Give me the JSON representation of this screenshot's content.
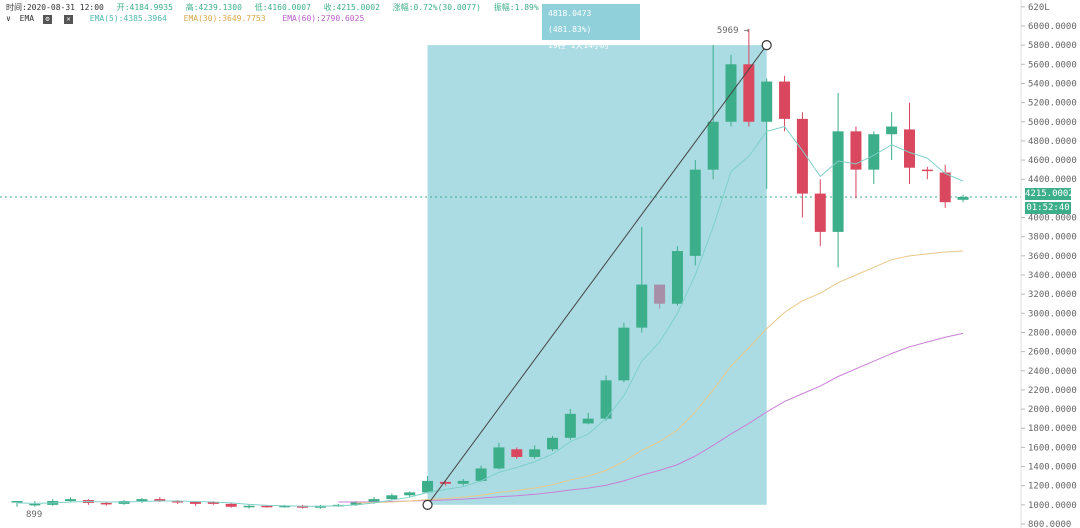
{
  "header": {
    "time": "时间:2020-08-31 12:00",
    "open": "开:4184.9935",
    "high": "高:4239.1300",
    "low": "低:4160.0007",
    "close": "收:4215.0002",
    "change": "涨幅:0.72%(30.0077)",
    "amplitude": "振幅:1.89%"
  },
  "indicator": {
    "toggle": "∨",
    "name": "EMA",
    "ema5": "EMA(5):4385.3964",
    "ema30": "EMA(30):3649.7753",
    "ema60": "EMA(60):2790.6025"
  },
  "tooltip": {
    "line1": "4818.0473 (481.83%)",
    "line2": "19柱 1天14小时"
  },
  "peak_label": "5969",
  "low_label": "899",
  "price_tag": "4215.0002",
  "countdown": "01:52:40",
  "y_axis": [
    {
      "v": 6200,
      "t": "620L"
    },
    {
      "v": 6000,
      "t": "6000.0000"
    },
    {
      "v": 5800,
      "t": "5800.0000"
    },
    {
      "v": 5600,
      "t": "5600.0000"
    },
    {
      "v": 5400,
      "t": "5400.0000"
    },
    {
      "v": 5200,
      "t": "5200.0000"
    },
    {
      "v": 5000,
      "t": "5000.0000"
    },
    {
      "v": 4800,
      "t": "4800.0000"
    },
    {
      "v": 4600,
      "t": "4600.0000"
    },
    {
      "v": 4400,
      "t": "4400.0000"
    },
    {
      "v": 4000,
      "t": "4000.0000"
    },
    {
      "v": 3800,
      "t": "3800.0000"
    },
    {
      "v": 3600,
      "t": "3600.0000"
    },
    {
      "v": 3400,
      "t": "3400.0000"
    },
    {
      "v": 3200,
      "t": "3200.0000"
    },
    {
      "v": 3000,
      "t": "3000.0000"
    },
    {
      "v": 2800,
      "t": "2800.0000"
    },
    {
      "v": 2600,
      "t": "2600.0000"
    },
    {
      "v": 2400,
      "t": "2400.0000"
    },
    {
      "v": 2200,
      "t": "2200.0000"
    },
    {
      "v": 2000,
      "t": "2000.0000"
    },
    {
      "v": 1800,
      "t": "1800.0000"
    },
    {
      "v": 1600,
      "t": "1600.0000"
    },
    {
      "v": 1400,
      "t": "1400.0000"
    },
    {
      "v": 1200,
      "t": "1200.0000"
    },
    {
      "v": 1000,
      "t": "1000.0000"
    },
    {
      "v": 800,
      "t": "800.0000"
    }
  ],
  "colors": {
    "up": "#3dae8a",
    "down": "#d9485f",
    "neutral": "#a88fa8",
    "ema5": "#7fd0c8",
    "ema30": "#e8c88a",
    "ema60": "#c97fd6",
    "range": "#8fd0db"
  },
  "chart_data": {
    "type": "candlestick",
    "ylim": [
      800,
      6240
    ],
    "candles": [
      [
        1030,
        1040,
        1020,
        980
      ],
      [
        1000,
        1010,
        1040,
        980
      ],
      [
        1000,
        1040,
        1060,
        990
      ],
      [
        1040,
        1060,
        1080,
        1030
      ],
      [
        1050,
        1020,
        1060,
        1000
      ],
      [
        1020,
        1010,
        1030,
        990
      ],
      [
        1010,
        1040,
        1050,
        1000
      ],
      [
        1040,
        1060,
        1070,
        1020
      ],
      [
        1060,
        1040,
        1080,
        1030
      ],
      [
        1040,
        1030,
        1050,
        1010
      ],
      [
        1030,
        1010,
        1040,
        990
      ],
      [
        1030,
        1010,
        1040,
        1000
      ],
      [
        1010,
        980,
        1020,
        970
      ],
      [
        980,
        990,
        1000,
        960
      ],
      [
        990,
        980,
        1000,
        970
      ],
      [
        980,
        990,
        1000,
        970
      ],
      [
        990,
        970,
        1000,
        960
      ],
      [
        970,
        990,
        1000,
        960
      ],
      [
        990,
        1000,
        1010,
        980
      ],
      [
        1000,
        1030,
        1040,
        990
      ],
      [
        1030,
        1060,
        1080,
        1010
      ],
      [
        1060,
        1100,
        1120,
        1050
      ],
      [
        1100,
        1130,
        1140,
        1080
      ],
      [
        1130,
        1250,
        1300,
        1120
      ],
      [
        1240,
        1220,
        1260,
        1200
      ],
      [
        1220,
        1250,
        1270,
        1200
      ],
      [
        1250,
        1380,
        1410,
        1240
      ],
      [
        1380,
        1600,
        1650,
        1370
      ],
      [
        1580,
        1500,
        1600,
        1480
      ],
      [
        1500,
        1580,
        1620,
        1480
      ],
      [
        1580,
        1700,
        1720,
        1560
      ],
      [
        1700,
        1950,
        2000,
        1680
      ],
      [
        1850,
        1900,
        1960,
        1840
      ],
      [
        1900,
        2300,
        2350,
        1880
      ],
      [
        2300,
        2850,
        2900,
        2280
      ],
      [
        2850,
        3300,
        3900,
        2800
      ],
      [
        3300,
        3100,
        3300,
        3050
      ],
      [
        3100,
        3650,
        3700,
        3080
      ],
      [
        3600,
        4500,
        4600,
        3500
      ],
      [
        4500,
        5000,
        5800,
        4400
      ],
      [
        5000,
        5600,
        5700,
        4950
      ],
      [
        5600,
        5000,
        5969,
        4950
      ],
      [
        5000,
        5420,
        5450,
        4300
      ],
      [
        5420,
        5030,
        5480,
        4900
      ],
      [
        5030,
        4250,
        5100,
        4000
      ],
      [
        4250,
        3850,
        4400,
        3700
      ],
      [
        3850,
        4900,
        5300,
        3480
      ],
      [
        4900,
        4500,
        4950,
        4200
      ],
      [
        4500,
        4870,
        4900,
        4350
      ],
      [
        4870,
        4950,
        5100,
        4600
      ],
      [
        4920,
        4520,
        5200,
        4350
      ],
      [
        4500,
        4490,
        4530,
        4400
      ],
      [
        4470,
        4160,
        4550,
        4100
      ],
      [
        4185,
        4215,
        4239,
        4160
      ]
    ],
    "ema5": [
      1020,
      1015,
      1020,
      1030,
      1035,
      1030,
      1030,
      1035,
      1040,
      1040,
      1035,
      1030,
      1020,
      1005,
      995,
      990,
      985,
      985,
      990,
      1000,
      1020,
      1050,
      1080,
      1130,
      1160,
      1190,
      1250,
      1340,
      1390,
      1450,
      1530,
      1660,
      1740,
      1900,
      2140,
      2500,
      2700,
      3000,
      3400,
      3900,
      4480,
      4640,
      4900,
      4950,
      4700,
      4430,
      4590,
      4560,
      4650,
      4760,
      4680,
      4620,
      4460,
      4380
    ],
    "ema30": [
      null,
      null,
      null,
      null,
      null,
      null,
      null,
      null,
      null,
      null,
      null,
      null,
      null,
      null,
      null,
      null,
      null,
      null,
      null,
      1020,
      1025,
      1030,
      1040,
      1055,
      1065,
      1080,
      1100,
      1130,
      1150,
      1175,
      1210,
      1260,
      1300,
      1360,
      1450,
      1570,
      1660,
      1780,
      1970,
      2200,
      2450,
      2640,
      2840,
      3010,
      3130,
      3210,
      3320,
      3400,
      3480,
      3560,
      3600,
      3620,
      3640,
      3650
    ],
    "ema60": [
      null,
      null,
      null,
      null,
      null,
      null,
      null,
      null,
      null,
      null,
      null,
      null,
      null,
      null,
      null,
      null,
      null,
      null,
      1030,
      1030,
      1030,
      1035,
      1040,
      1045,
      1050,
      1060,
      1070,
      1085,
      1095,
      1110,
      1130,
      1155,
      1175,
      1205,
      1250,
      1310,
      1360,
      1420,
      1510,
      1620,
      1740,
      1850,
      1970,
      2080,
      2160,
      2240,
      2340,
      2420,
      2500,
      2580,
      2650,
      2700,
      2750,
      2790
    ]
  }
}
